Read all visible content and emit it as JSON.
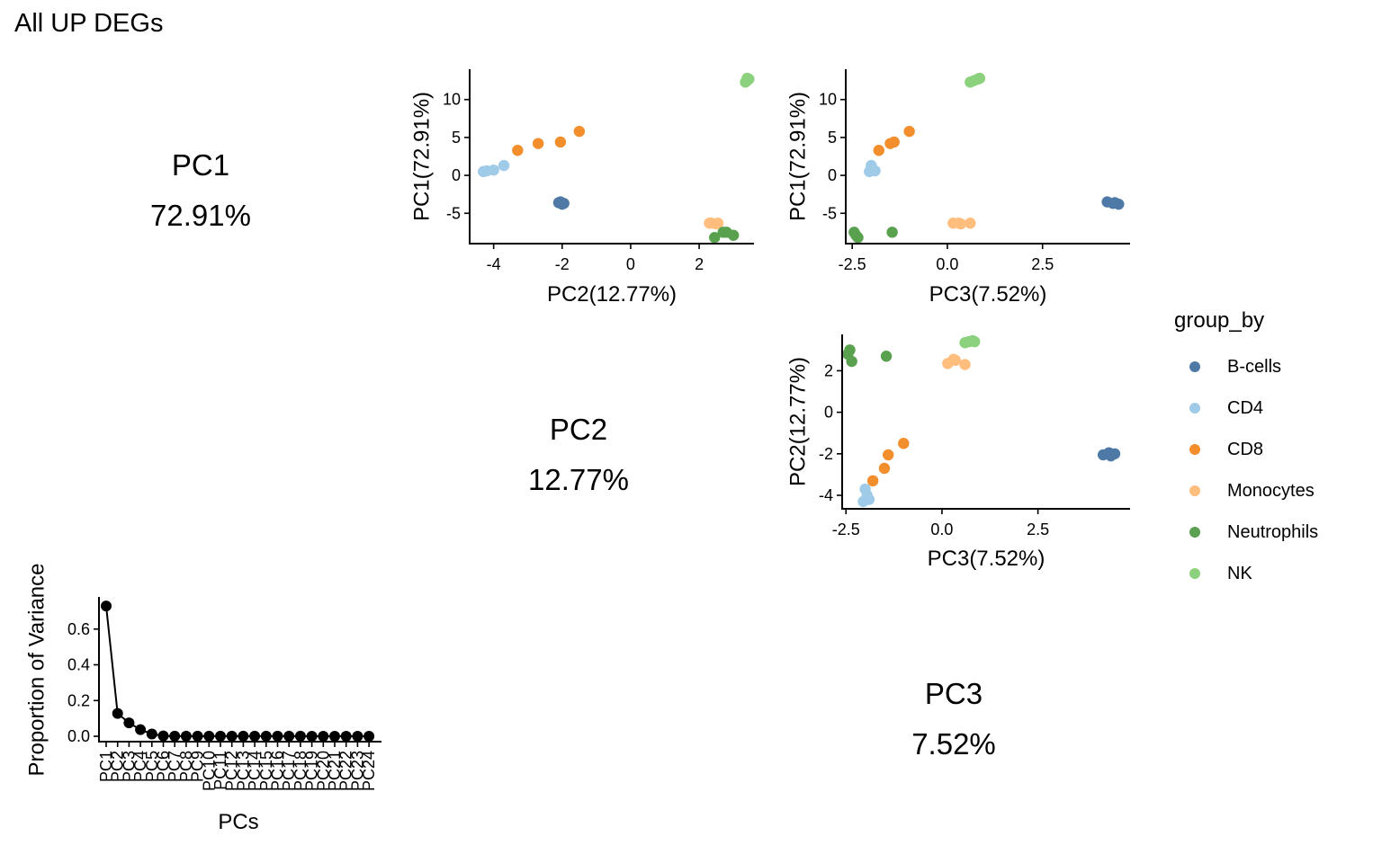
{
  "title": "All UP DEGs",
  "diagonal": [
    {
      "label": "PC1",
      "value": "72.91%"
    },
    {
      "label": "PC2",
      "value": "12.77%"
    },
    {
      "label": "PC3",
      "value": "7.52%"
    }
  ],
  "legend": {
    "title": "group_by",
    "items": [
      {
        "label": "B-cells",
        "color": "#4E79A7"
      },
      {
        "label": "CD4",
        "color": "#A0CBE8"
      },
      {
        "label": "CD8",
        "color": "#F28E2B"
      },
      {
        "label": "Monocytes",
        "color": "#FFBE7D"
      },
      {
        "label": "Neutrophils",
        "color": "#59A14F"
      },
      {
        "label": "NK",
        "color": "#8CD17D"
      }
    ]
  },
  "chart_data": [
    {
      "type": "scatter",
      "id": "pc2-vs-pc1",
      "xlabel": "PC2(12.77%)",
      "ylabel": "PC1(72.91%)",
      "xvar": "PC2",
      "yvar": "PC1",
      "xticks": [
        -4,
        -2,
        0,
        2
      ],
      "yticks": [
        10,
        5,
        0,
        -5
      ],
      "xlim": [
        -4.7,
        3.6
      ],
      "ylim": [
        -9.0,
        14.0
      ]
    },
    {
      "type": "scatter",
      "id": "pc3-vs-pc1",
      "xlabel": "PC3(7.52%)",
      "ylabel": "PC1(72.91%)",
      "xvar": "PC3",
      "yvar": "PC1",
      "xticks": [
        -2.5,
        0.0,
        2.5
      ],
      "xtick_labels": [
        "-2.5",
        "0.0",
        "2.5"
      ],
      "yticks": [
        10,
        5,
        0,
        -5
      ],
      "xlim": [
        -2.67,
        4.8
      ],
      "ylim": [
        -9.0,
        14.0
      ]
    },
    {
      "type": "scatter",
      "id": "pc3-vs-pc2",
      "xlabel": "PC3(7.52%)",
      "ylabel": "PC2(12.77%)",
      "xvar": "PC3",
      "yvar": "PC2",
      "xticks": [
        -2.5,
        0.0,
        2.5
      ],
      "xtick_labels": [
        "-2.5",
        "0.0",
        "2.5"
      ],
      "yticks": [
        2,
        0,
        -2,
        -4
      ],
      "xlim": [
        -2.6,
        4.9
      ],
      "ylim": [
        -4.65,
        3.75
      ]
    },
    {
      "type": "line",
      "id": "scree",
      "xlabel": "PCs",
      "ylabel": "Proportion of Variance",
      "categories": [
        "PC1",
        "PC2",
        "PC3",
        "PC4",
        "PC5",
        "PC6",
        "PC7",
        "PC8",
        "PC9",
        "PC10",
        "PC11",
        "PC12",
        "PC13",
        "PC14",
        "PC15",
        "PC16",
        "PC17",
        "PC18",
        "PC19",
        "PC20",
        "PC21",
        "PC22",
        "PC23",
        "PC24"
      ],
      "values": [
        0.7291,
        0.1277,
        0.0752,
        0.037,
        0.013,
        0.002,
        0.001,
        0.001,
        0.001,
        0.001,
        0.001,
        0.001,
        0.001,
        0.001,
        0.001,
        0.001,
        0.001,
        0.001,
        0.0,
        0.0,
        0.0,
        0.0,
        0.0,
        0.0
      ],
      "yticks": [
        0.0,
        0.2,
        0.4,
        0.6
      ],
      "ytick_labels": [
        "0.0",
        "0.2",
        "0.4",
        "0.6"
      ],
      "ylim": [
        -0.03,
        0.78
      ]
    }
  ],
  "samples": [
    {
      "group": "B-cells",
      "PC1": -3.5,
      "PC2": -2.05,
      "PC3": 4.2
    },
    {
      "group": "B-cells",
      "PC1": -3.7,
      "PC2": -1.95,
      "PC3": 4.35
    },
    {
      "group": "B-cells",
      "PC1": -3.6,
      "PC2": -2.1,
      "PC3": 4.4
    },
    {
      "group": "B-cells",
      "PC1": -3.8,
      "PC2": -2.0,
      "PC3": 4.5
    },
    {
      "group": "CD4",
      "PC1": 0.5,
      "PC2": -4.3,
      "PC3": -2.05
    },
    {
      "group": "CD4",
      "PC1": 0.7,
      "PC2": -4.0,
      "PC3": -1.95
    },
    {
      "group": "CD4",
      "PC1": 1.3,
      "PC2": -3.7,
      "PC3": -2.0
    },
    {
      "group": "CD4",
      "PC1": 0.6,
      "PC2": -4.2,
      "PC3": -1.9
    },
    {
      "group": "CD8",
      "PC1": 3.3,
      "PC2": -3.3,
      "PC3": -1.8
    },
    {
      "group": "CD8",
      "PC1": 4.2,
      "PC2": -2.7,
      "PC3": -1.5
    },
    {
      "group": "CD8",
      "PC1": 4.4,
      "PC2": -2.05,
      "PC3": -1.4
    },
    {
      "group": "CD8",
      "PC1": 5.8,
      "PC2": -1.5,
      "PC3": -1.0
    },
    {
      "group": "Monocytes",
      "PC1": -6.3,
      "PC2": 2.35,
      "PC3": 0.15
    },
    {
      "group": "Monocytes",
      "PC1": -6.4,
      "PC2": 2.5,
      "PC3": 0.35
    },
    {
      "group": "Monocytes",
      "PC1": -6.3,
      "PC2": 2.55,
      "PC3": 0.3
    },
    {
      "group": "Monocytes",
      "PC1": -6.3,
      "PC2": 2.3,
      "PC3": 0.6
    },
    {
      "group": "Neutrophils",
      "PC1": -7.5,
      "PC2": 2.8,
      "PC3": -2.45
    },
    {
      "group": "Neutrophils",
      "PC1": -7.9,
      "PC2": 3.0,
      "PC3": -2.4
    },
    {
      "group": "Neutrophils",
      "PC1": -8.2,
      "PC2": 2.45,
      "PC3": -2.35
    },
    {
      "group": "Neutrophils",
      "PC1": -7.5,
      "PC2": 2.7,
      "PC3": -1.45
    },
    {
      "group": "NK",
      "PC1": 12.3,
      "PC2": 3.35,
      "PC3": 0.6
    },
    {
      "group": "NK",
      "PC1": 12.5,
      "PC2": 3.4,
      "PC3": 0.7
    },
    {
      "group": "NK",
      "PC1": 12.7,
      "PC2": 3.45,
      "PC3": 0.8
    },
    {
      "group": "NK",
      "PC1": 12.8,
      "PC2": 3.4,
      "PC3": 0.85
    }
  ]
}
